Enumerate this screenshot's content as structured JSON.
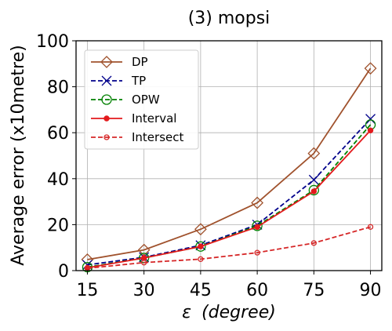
{
  "chart_data": {
    "type": "line",
    "title": "(3) mopsi",
    "xlabel_symbol": "ε",
    "xlabel_unit": "(degree)",
    "ylabel": "Average error (x10metre)",
    "x": [
      15,
      30,
      45,
      60,
      75,
      90
    ],
    "xticks": [
      "15",
      "30",
      "45",
      "60",
      "75",
      "90"
    ],
    "yticks": [
      "0",
      "20",
      "40",
      "60",
      "80",
      "100"
    ],
    "ylim": [
      0,
      100
    ],
    "grid": true,
    "legend_position": "top-left",
    "series": [
      {
        "name": "DP",
        "values": [
          4.8,
          9.0,
          18.0,
          29.5,
          51.0,
          88.0
        ],
        "color": "#a0522d",
        "dash": "solid",
        "marker": "diamond"
      },
      {
        "name": "TP",
        "values": [
          2.5,
          5.8,
          11.0,
          20.0,
          39.5,
          66.0
        ],
        "color": "#00008b",
        "dash": "dashed",
        "marker": "x"
      },
      {
        "name": "OPW",
        "values": [
          1.5,
          5.5,
          10.5,
          19.5,
          35.0,
          63.5
        ],
        "color": "#008000",
        "dash": "dashed",
        "marker": "circle-open"
      },
      {
        "name": "Interval",
        "values": [
          1.2,
          5.5,
          10.5,
          19.0,
          34.5,
          61.0
        ],
        "color": "#e31a1c",
        "dash": "solid",
        "marker": "circle-filled"
      },
      {
        "name": "Intersect",
        "values": [
          1.0,
          3.5,
          5.0,
          7.8,
          12.0,
          19.0
        ],
        "color": "#d62728",
        "dash": "dashed",
        "marker": "circle-small-open"
      }
    ]
  }
}
